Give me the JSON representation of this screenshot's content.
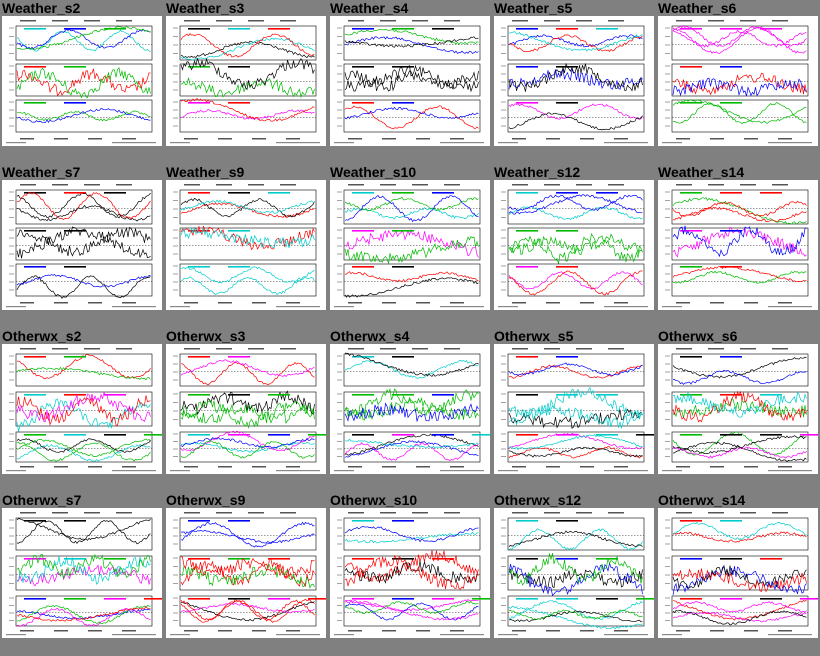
{
  "gallery": {
    "rows": [
      {
        "kind": "weather",
        "items": [
          {
            "title": "Weather_s2"
          },
          {
            "title": "Weather_s3"
          },
          {
            "title": "Weather_s4"
          },
          {
            "title": "Weather_s5"
          },
          {
            "title": "Weather_s6"
          }
        ]
      },
      {
        "kind": "weather",
        "items": [
          {
            "title": "Weather_s7"
          },
          {
            "title": "Weather_s9"
          },
          {
            "title": "Weather_s10"
          },
          {
            "title": "Weather_s12"
          },
          {
            "title": "Weather_s14"
          }
        ]
      },
      {
        "kind": "otherwx",
        "items": [
          {
            "title": "Otherwx_s2"
          },
          {
            "title": "Otherwx_s3"
          },
          {
            "title": "Otherwx_s4"
          },
          {
            "title": "Otherwx_s5"
          },
          {
            "title": "Otherwx_s6"
          }
        ]
      },
      {
        "kind": "otherwx",
        "items": [
          {
            "title": "Otherwx_s7"
          },
          {
            "title": "Otherwx_s9"
          },
          {
            "title": "Otherwx_s10"
          },
          {
            "title": "Otherwx_s12"
          },
          {
            "title": "Otherwx_s14"
          }
        ]
      }
    ]
  },
  "colors": {
    "page_background": "#808080",
    "thumb_background": "#ffffff",
    "series": [
      "#ff0000",
      "#00bb00",
      "#0000ff",
      "#00cccc",
      "#ff00ff",
      "#000000"
    ]
  }
}
